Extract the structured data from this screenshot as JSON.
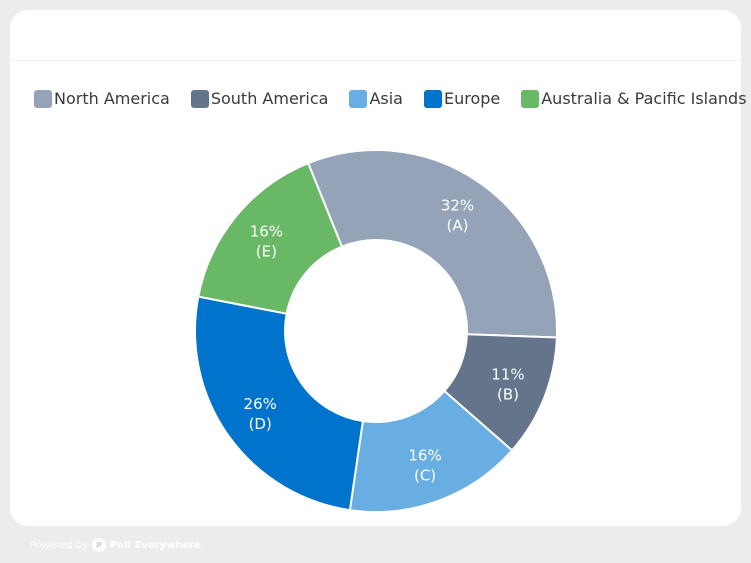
{
  "legend": [
    {
      "label": "North America",
      "color": "#94a3b8"
    },
    {
      "label": "South America",
      "color": "#64748b"
    },
    {
      "label": "Asia",
      "color": "#69aee2"
    },
    {
      "label": "Europe",
      "color": "#0073cc"
    },
    {
      "label": "Australia & Pacific Islands",
      "color": "#68b865"
    }
  ],
  "footer": {
    "powered_by": "Powered by",
    "brand": "Poll Everywhere"
  },
  "chart_data": {
    "type": "pie",
    "donut": true,
    "categories": [
      "North America",
      "South America",
      "Asia",
      "Europe",
      "Australia & Pacific Islands"
    ],
    "letters": [
      "(A)",
      "(B)",
      "(C)",
      "(D)",
      "(E)"
    ],
    "values": [
      32,
      11,
      16,
      26,
      16
    ],
    "percent_labels": [
      "32%",
      "11%",
      "16%",
      "26%",
      "16%"
    ],
    "colors": [
      "#94a3b8",
      "#64748b",
      "#69aee2",
      "#0073cc",
      "#68b865"
    ],
    "legend_position": "top"
  }
}
